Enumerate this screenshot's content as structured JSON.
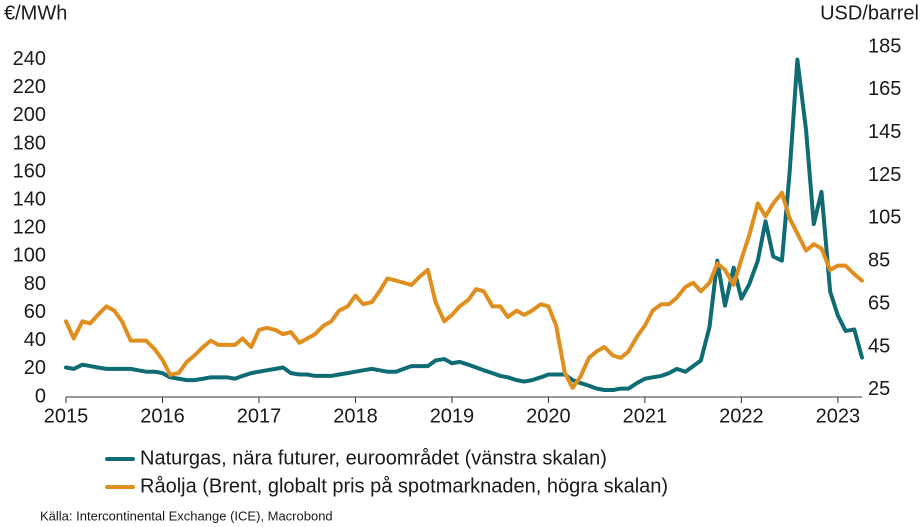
{
  "chart_data": {
    "type": "line",
    "y_label": "€/MWh",
    "y2_label": "USD/barrel",
    "source": "Källa: Intercontinental Exchange (ICE), Macrobond",
    "x": [
      2015,
      2015.08,
      2015.17,
      2015.25,
      2015.33,
      2015.42,
      2015.5,
      2015.58,
      2015.67,
      2015.75,
      2015.83,
      2015.92,
      2016,
      2016.08,
      2016.17,
      2016.25,
      2016.33,
      2016.42,
      2016.5,
      2016.58,
      2016.67,
      2016.75,
      2016.83,
      2016.92,
      2017,
      2017.08,
      2017.17,
      2017.25,
      2017.33,
      2017.42,
      2017.5,
      2017.58,
      2017.67,
      2017.75,
      2017.83,
      2017.92,
      2018,
      2018.08,
      2018.17,
      2018.25,
      2018.33,
      2018.42,
      2018.5,
      2018.58,
      2018.67,
      2018.75,
      2018.83,
      2018.92,
      2019,
      2019.08,
      2019.17,
      2019.25,
      2019.33,
      2019.42,
      2019.5,
      2019.58,
      2019.67,
      2019.75,
      2019.83,
      2019.92,
      2020,
      2020.08,
      2020.17,
      2020.25,
      2020.33,
      2020.42,
      2020.5,
      2020.58,
      2020.67,
      2020.75,
      2020.83,
      2020.92,
      2021,
      2021.08,
      2021.17,
      2021.25,
      2021.33,
      2021.42,
      2021.5,
      2021.58,
      2021.67,
      2021.75,
      2021.83,
      2021.92,
      2022,
      2022.08,
      2022.17,
      2022.25,
      2022.33,
      2022.42,
      2022.5,
      2022.58,
      2022.67,
      2022.75,
      2022.83,
      2022.92,
      2023,
      2023.08,
      2023.17,
      2023.25
    ],
    "series": [
      {
        "name": "Naturgas, nära futurer, euroområdet (vänstra skalan)",
        "color": "#0f6b74",
        "axis": "y",
        "values": [
          21,
          20,
          23,
          22,
          21,
          20,
          20,
          20,
          20,
          19,
          18,
          18,
          17,
          14,
          13,
          12,
          12,
          13,
          14,
          14,
          14,
          13,
          15,
          17,
          18,
          19,
          20,
          21,
          17,
          16,
          16,
          15,
          15,
          15,
          16,
          17,
          18,
          19,
          20,
          19,
          18,
          18,
          20,
          22,
          22,
          22,
          26,
          27,
          24,
          25,
          23,
          21,
          19,
          17,
          15,
          14,
          12,
          11,
          12,
          14,
          16,
          16,
          16,
          12,
          10,
          8,
          6,
          5,
          5,
          6,
          6,
          10,
          13,
          14,
          15,
          17,
          20,
          18,
          22,
          26,
          50,
          97,
          65,
          92,
          70,
          80,
          97,
          125,
          100,
          97,
          160,
          240,
          190,
          123,
          146,
          75,
          58,
          47,
          48,
          28
        ]
      },
      {
        "name": "Råolja (Brent, globalt pris på spotmarknaden, högra skalan)",
        "color": "#e08e1e",
        "axis": "y2",
        "values": [
          57,
          49,
          57,
          56,
          60,
          64,
          62,
          57,
          48,
          48,
          48,
          44,
          39,
          32,
          33,
          38,
          41,
          45,
          48,
          46,
          46,
          46,
          49,
          45,
          53,
          54,
          53,
          51,
          52,
          47,
          49,
          51,
          55,
          57,
          62,
          64,
          69,
          65,
          66,
          71,
          77,
          76,
          75,
          74,
          78,
          81,
          66,
          57,
          60,
          64,
          67,
          72,
          71,
          64,
          64,
          59,
          62,
          60,
          62,
          65,
          64,
          55,
          33,
          26,
          31,
          40,
          43,
          45,
          41,
          40,
          43,
          50,
          55,
          62,
          65,
          65,
          68,
          73,
          75,
          71,
          75,
          84,
          81,
          74,
          86,
          97,
          112,
          106,
          112,
          117,
          105,
          98,
          90,
          93,
          91,
          81,
          83,
          83,
          79,
          76
        ]
      }
    ],
    "xlim": [
      2015,
      2023.25
    ],
    "xticks": [
      2015,
      2016,
      2017,
      2018,
      2019,
      2020,
      2021,
      2022,
      2023
    ],
    "ylim": [
      0,
      249
    ],
    "yticks": [
      0,
      20,
      40,
      60,
      80,
      100,
      120,
      140,
      160,
      180,
      200,
      220,
      240
    ],
    "y2lim": [
      21.7,
      185
    ],
    "y2ticks": [
      25,
      45,
      65,
      85,
      105,
      125,
      145,
      165,
      185
    ],
    "grid": false
  }
}
